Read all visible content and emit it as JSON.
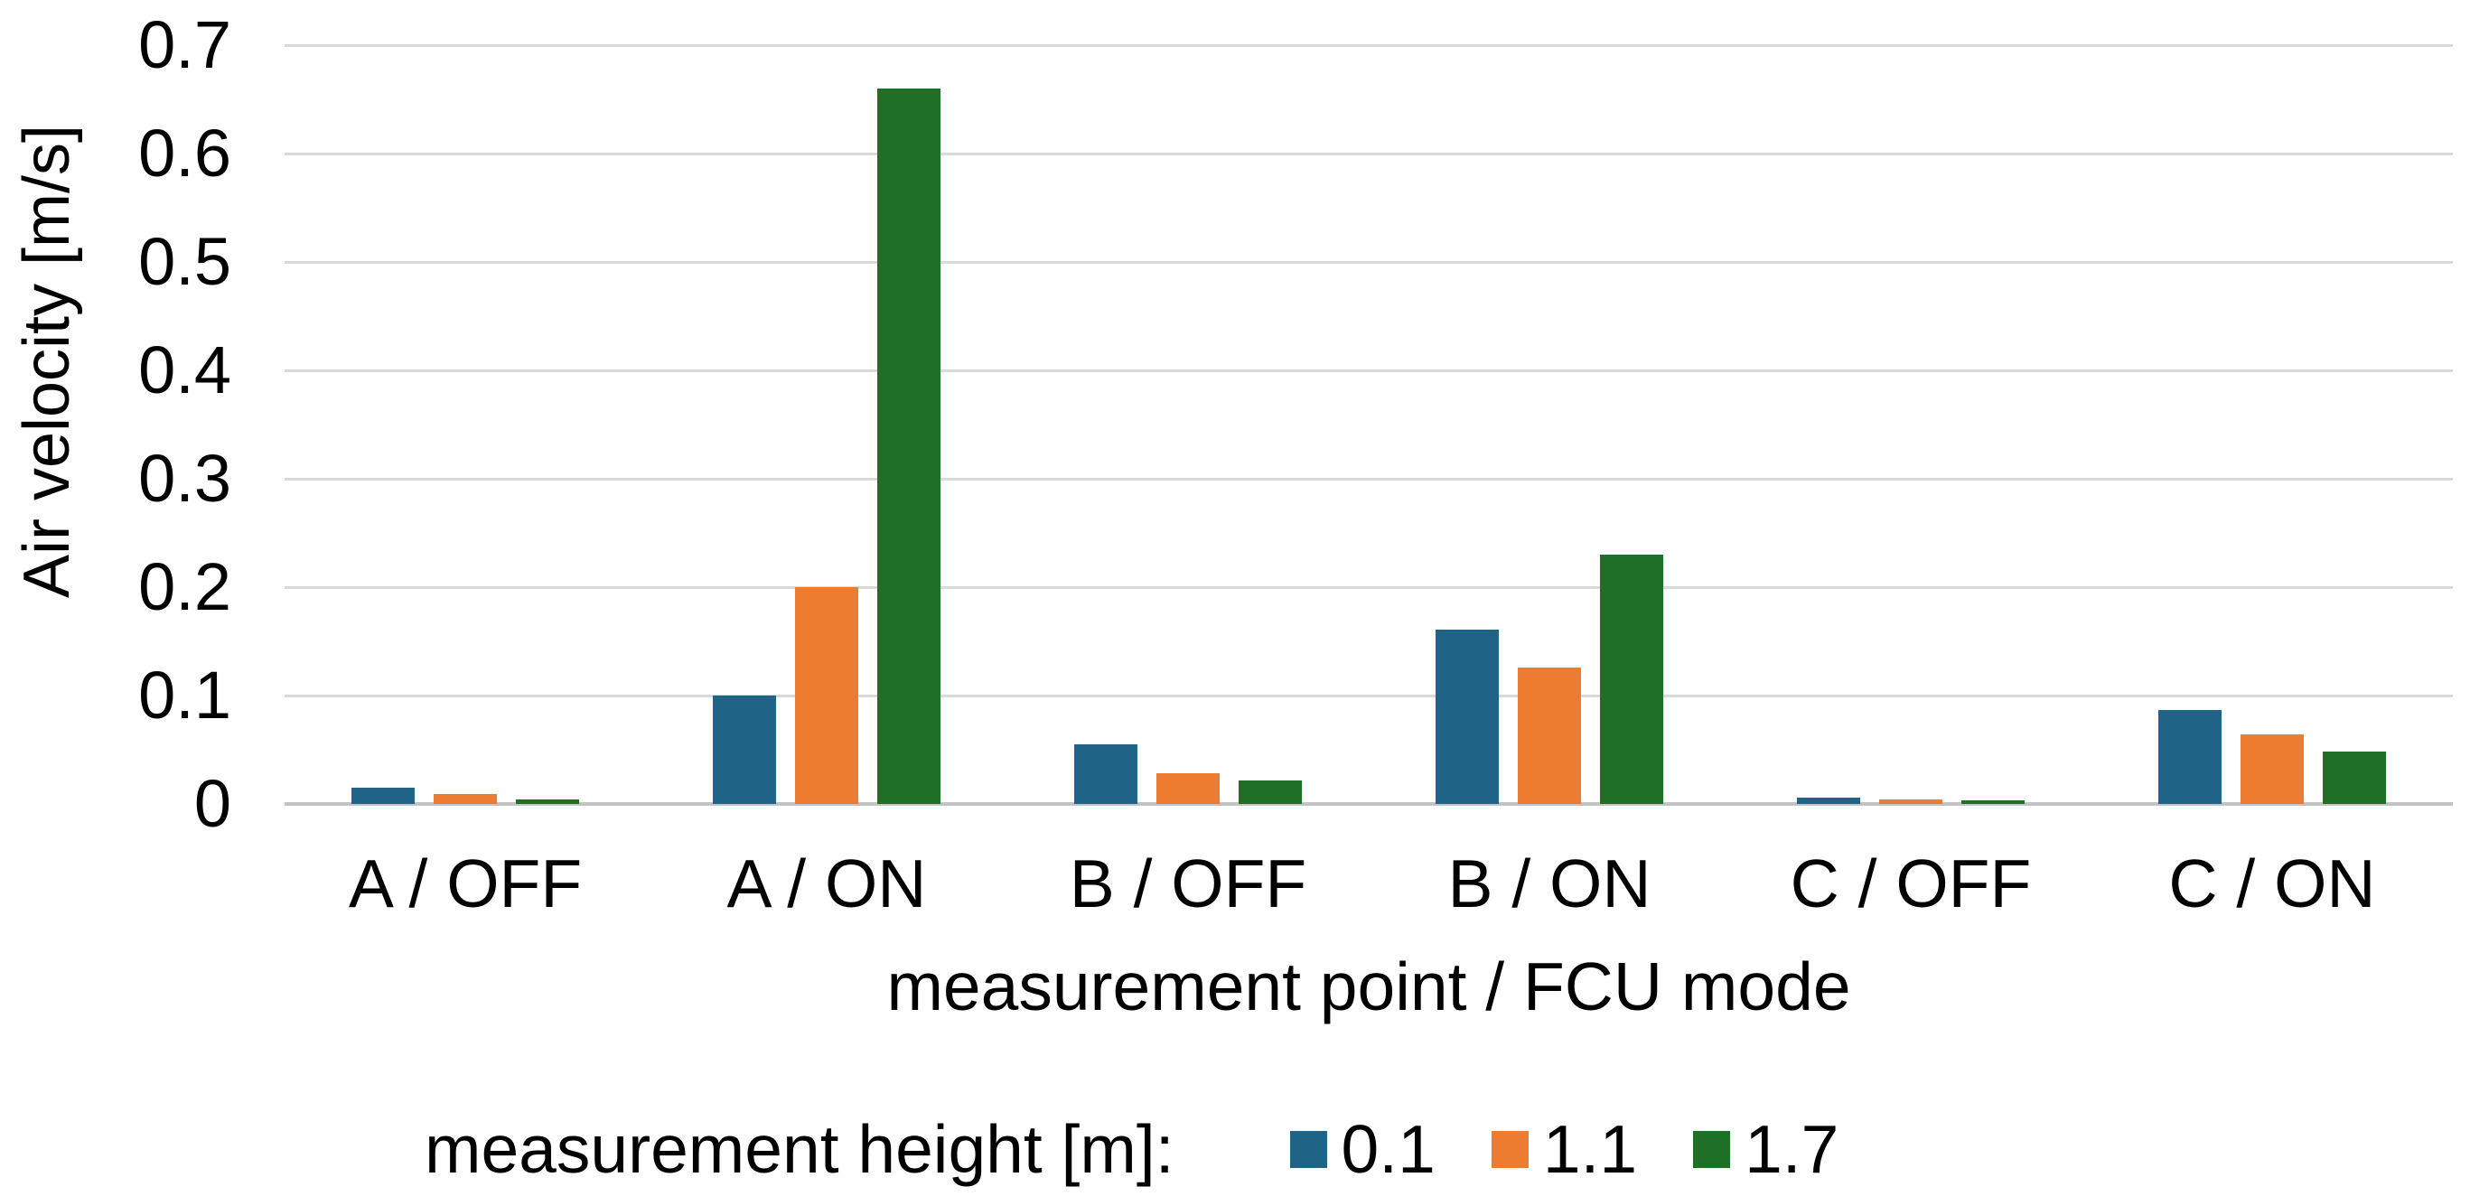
{
  "chart_data": {
    "type": "bar",
    "title": "",
    "categories": [
      "A / OFF",
      "A / ON",
      "B / OFF",
      "B / ON",
      "C / OFF",
      "C / ON"
    ],
    "series": [
      {
        "name": "0.1",
        "color": "#1f6387",
        "values": [
          0.015,
          0.1,
          0.055,
          0.161,
          0.006,
          0.087
        ]
      },
      {
        "name": "1.1",
        "color": "#ec7c30",
        "values": [
          0.009,
          0.2,
          0.028,
          0.126,
          0.004,
          0.064
        ]
      },
      {
        "name": "1.7",
        "color": "#1e7026",
        "values": [
          0.004,
          0.66,
          0.022,
          0.23,
          0.003,
          0.048
        ]
      }
    ],
    "xlabel": "measurement point / FCU mode",
    "ylabel": "Air velocity [m/s]",
    "ylim": [
      0,
      0.7
    ],
    "ytick_step": 0.1,
    "ytick_labels": [
      "0",
      "0.1",
      "0.2",
      "0.3",
      "0.4",
      "0.5",
      "0.6",
      "0.7"
    ],
    "grid": true,
    "legend_title": "measurement height [m]:",
    "legend_position": "bottom",
    "colors": {
      "gridline": "#d9d9d9",
      "zero_line": "#c3c3c3",
      "text": "#000000",
      "background": "#ffffff"
    }
  }
}
